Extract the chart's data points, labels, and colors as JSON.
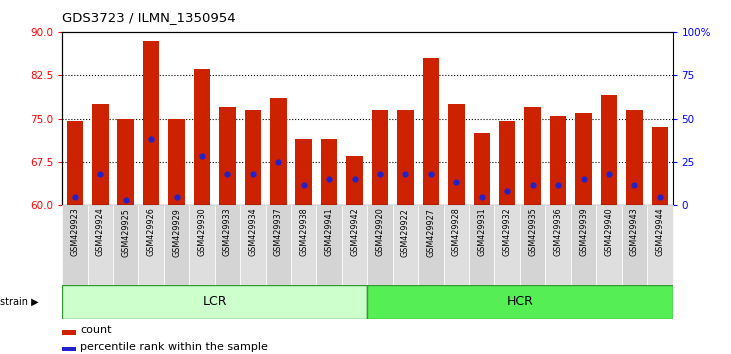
{
  "title": "GDS3723 / ILMN_1350954",
  "samples": [
    "GSM429923",
    "GSM429924",
    "GSM429925",
    "GSM429926",
    "GSM429929",
    "GSM429930",
    "GSM429933",
    "GSM429934",
    "GSM429937",
    "GSM429938",
    "GSM429941",
    "GSM429942",
    "GSM429920",
    "GSM429922",
    "GSM429927",
    "GSM429928",
    "GSM429931",
    "GSM429932",
    "GSM429935",
    "GSM429936",
    "GSM429939",
    "GSM429940",
    "GSM429943",
    "GSM429944"
  ],
  "bar_heights": [
    74.5,
    77.5,
    75.0,
    88.5,
    75.0,
    83.5,
    77.0,
    76.5,
    78.5,
    71.5,
    71.5,
    68.5,
    76.5,
    76.5,
    85.5,
    77.5,
    72.5,
    74.5,
    77.0,
    75.5,
    76.0,
    79.0,
    76.5,
    73.5
  ],
  "blue_dot_values": [
    61.5,
    65.5,
    61.0,
    71.5,
    61.5,
    68.5,
    65.5,
    65.5,
    67.5,
    63.5,
    64.5,
    64.5,
    65.5,
    65.5,
    65.5,
    64.0,
    61.5,
    62.5,
    63.5,
    63.5,
    64.5,
    65.5,
    63.5,
    61.5
  ],
  "lcr_count": 12,
  "hcr_count": 12,
  "ymin": 60,
  "ymax": 90,
  "yticks": [
    60,
    67.5,
    75,
    82.5,
    90
  ],
  "right_yticks": [
    0,
    25,
    50,
    75,
    100
  ],
  "bar_color": "#cc2200",
  "dot_color": "#2222cc",
  "lcr_color": "#ccffcc",
  "hcr_color": "#55ee55",
  "tick_bg_color": "#d8d8d8",
  "legend_count_label": "count",
  "legend_pct_label": "percentile rank within the sample",
  "strain_label": "strain",
  "lcr_label": "LCR",
  "hcr_label": "HCR",
  "dotted_lines": [
    67.5,
    75,
    82.5
  ]
}
